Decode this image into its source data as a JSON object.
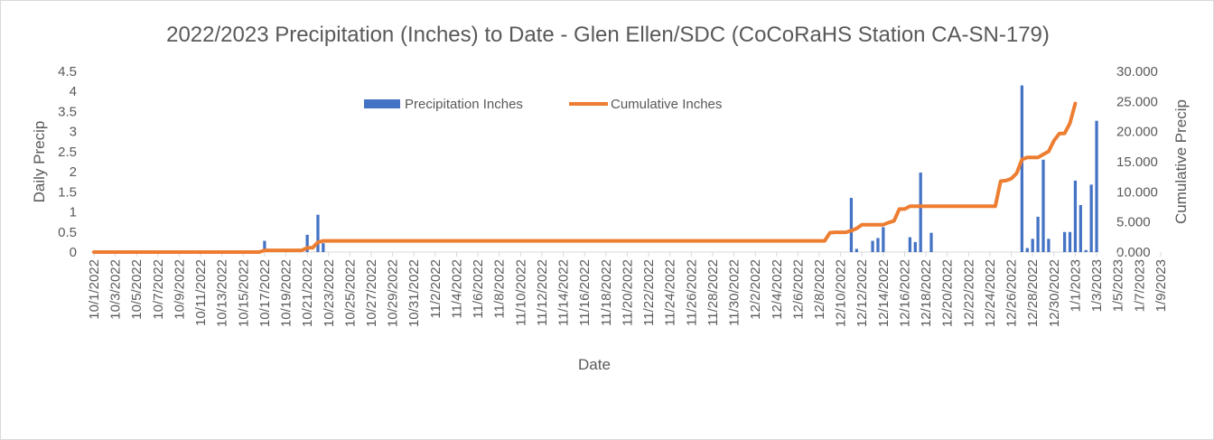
{
  "chart_data": {
    "type": "bar+line",
    "title": "2022/2023 Precipitation (Inches)  to Date - Glen Ellen/SDC (CoCoRaHS Station CA-SN-179)",
    "xlabel": "Date",
    "ylabel_left": "Daily Precip",
    "ylabel_right": "Cumulative Precip",
    "y_left_range": [
      0,
      4.5
    ],
    "y_left_ticks": [
      "0",
      "0.5",
      "1",
      "1.5",
      "2",
      "2.5",
      "3",
      "3.5",
      "4",
      "4.5"
    ],
    "y_right_range": [
      0,
      30
    ],
    "y_right_ticks": [
      "0.000",
      "5.000",
      "10.000",
      "15.000",
      "20.000",
      "25.000",
      "30.000"
    ],
    "legend_position": "top-center",
    "grid": false,
    "x_tick_labels": [
      "10/1/2022",
      "10/3/2022",
      "10/5/2022",
      "10/7/2022",
      "10/9/2022",
      "10/11/2022",
      "10/13/2022",
      "10/15/2022",
      "10/17/2022",
      "10/19/2022",
      "10/21/2022",
      "10/23/2022",
      "10/25/2022",
      "10/27/2022",
      "10/29/2022",
      "10/31/2022",
      "11/2/2022",
      "11/4/2022",
      "11/6/2022",
      "11/8/2022",
      "11/10/2022",
      "11/12/2022",
      "11/14/2022",
      "11/16/2022",
      "11/18/2022",
      "11/20/2022",
      "11/22/2022",
      "11/24/2022",
      "11/26/2022",
      "11/28/2022",
      "11/30/2022",
      "12/2/2022",
      "12/4/2022",
      "12/6/2022",
      "12/8/2022",
      "12/10/2022",
      "12/12/2022",
      "12/14/2022",
      "12/16/2022",
      "12/18/2022",
      "12/20/2022",
      "12/22/2022",
      "12/24/2022",
      "12/26/2022",
      "12/28/2022",
      "12/30/2022",
      "1/1/2023",
      "1/3/2023",
      "1/5/2023",
      "1/7/2023",
      "1/9/2023"
    ],
    "series": [
      {
        "name": "Precipitation Inches",
        "kind": "bar",
        "axis": "left",
        "color": "#4472C4",
        "values": [
          0,
          0,
          0,
          0,
          0,
          0,
          0,
          0,
          0,
          0,
          0,
          0,
          0,
          0,
          0,
          0,
          0,
          0,
          0,
          0,
          0,
          0,
          0,
          0,
          0,
          0,
          0,
          0,
          0,
          0,
          0,
          0,
          0.28,
          0,
          0,
          0,
          0,
          0,
          0,
          0,
          0.43,
          0,
          0.93,
          0.22,
          0,
          0,
          0,
          0,
          0,
          0,
          0,
          0,
          0,
          0,
          0,
          0,
          0,
          0,
          0,
          0,
          0,
          0,
          0,
          0,
          0,
          0,
          0,
          0,
          0,
          0,
          0,
          0,
          0,
          0,
          0,
          0,
          0,
          0,
          0,
          0,
          0,
          0,
          0,
          0,
          0,
          0,
          0,
          0,
          0,
          0,
          0,
          0,
          0,
          0,
          0,
          0,
          0,
          0,
          0,
          0,
          0,
          0,
          0,
          0,
          0,
          0,
          0,
          0,
          0,
          0,
          0,
          0,
          0,
          0,
          0,
          0,
          0,
          0,
          0,
          0,
          0,
          0,
          0,
          0,
          0,
          0,
          0,
          0,
          0,
          0,
          0,
          0,
          0,
          0,
          0,
          0,
          0,
          0,
          0,
          0,
          0,
          0,
          1.35,
          0.08,
          0,
          0,
          0.28,
          0.35,
          0.62,
          0,
          0,
          0,
          0,
          0.37,
          0.25,
          1.98,
          0,
          0.48,
          0,
          0,
          0,
          0,
          0,
          0,
          0,
          0,
          0,
          0,
          0,
          0,
          0,
          0,
          0,
          0,
          4.15,
          0.1,
          0.33,
          0.88,
          2.3,
          0.33,
          0,
          0,
          0.5,
          0.5,
          1.78,
          1.17,
          0.05,
          1.68,
          3.27
        ]
      },
      {
        "name": "Cumulative Inches",
        "kind": "line",
        "axis": "right",
        "color": "#ED7D31",
        "values": [
          0,
          0,
          0,
          0,
          0,
          0,
          0,
          0,
          0,
          0,
          0,
          0,
          0,
          0,
          0,
          0,
          0,
          0,
          0,
          0,
          0,
          0,
          0,
          0,
          0,
          0,
          0,
          0,
          0,
          0,
          0,
          0,
          0.28,
          0.28,
          0.28,
          0.28,
          0.28,
          0.28,
          0.28,
          0.28,
          0.71,
          0.71,
          1.64,
          1.86,
          1.86,
          1.86,
          1.86,
          1.86,
          1.86,
          1.86,
          1.86,
          1.86,
          1.86,
          1.86,
          1.86,
          1.86,
          1.86,
          1.86,
          1.86,
          1.86,
          1.86,
          1.86,
          1.86,
          1.86,
          1.86,
          1.86,
          1.86,
          1.86,
          1.86,
          1.86,
          1.86,
          1.86,
          1.86,
          1.86,
          1.86,
          1.86,
          1.86,
          1.86,
          1.86,
          1.86,
          1.86,
          1.86,
          1.86,
          1.86,
          1.86,
          1.86,
          1.86,
          1.86,
          1.86,
          1.86,
          1.86,
          1.86,
          1.86,
          1.86,
          1.86,
          1.86,
          1.86,
          1.86,
          1.86,
          1.86,
          1.86,
          1.86,
          1.86,
          1.86,
          1.86,
          1.86,
          1.86,
          1.86,
          1.86,
          1.86,
          1.86,
          1.86,
          1.86,
          1.86,
          1.86,
          1.86,
          1.86,
          1.86,
          1.86,
          1.86,
          1.86,
          1.86,
          1.86,
          1.86,
          1.86,
          1.86,
          1.86,
          1.86,
          1.86,
          1.86,
          1.86,
          1.86,
          1.86,
          1.86,
          1.86,
          1.86,
          1.86,
          1.86,
          3.21,
          3.29,
          3.29,
          3.29,
          3.57,
          3.92,
          4.54,
          4.54,
          4.54,
          4.54,
          4.54,
          4.91,
          5.16,
          7.14,
          7.14,
          7.62,
          7.62,
          7.62,
          7.62,
          7.62,
          7.62,
          7.62,
          7.62,
          7.62,
          7.62,
          7.62,
          7.62,
          7.62,
          7.62,
          7.62,
          7.62,
          7.62,
          11.77,
          11.87,
          12.2,
          13.08,
          15.38,
          15.71,
          15.71,
          15.71,
          16.21,
          16.71,
          18.49,
          19.66,
          19.71,
          21.39,
          24.66
        ]
      }
    ]
  }
}
